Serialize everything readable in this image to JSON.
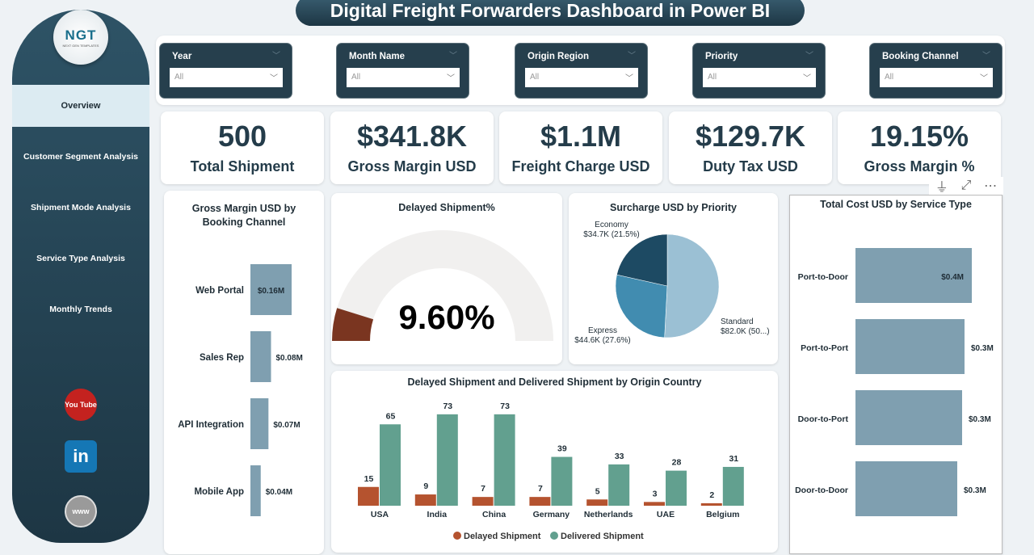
{
  "header": {
    "title": "Digital Freight Forwarders Dashboard in Power BI"
  },
  "sidebar": {
    "logo": {
      "text": "NGT",
      "tagline": "NEXT GEN TEMPLATES"
    },
    "items": [
      {
        "label": "Overview",
        "active": true
      },
      {
        "label": "Customer Segment Analysis"
      },
      {
        "label": "Shipment Mode Analysis"
      },
      {
        "label": "Service Type Analysis"
      },
      {
        "label": "Monthly Trends"
      }
    ],
    "social": [
      {
        "icon": "youtube-icon",
        "label": "You Tube"
      },
      {
        "icon": "linkedin-icon",
        "label": "in"
      },
      {
        "icon": "globe-icon",
        "label": "www"
      }
    ]
  },
  "filters": [
    {
      "label": "Year",
      "value": "All"
    },
    {
      "label": "Month Name",
      "value": "All"
    },
    {
      "label": "Origin Region",
      "value": "All"
    },
    {
      "label": "Priority",
      "value": "All"
    },
    {
      "label": "Booking Channel",
      "value": "All"
    }
  ],
  "kpis": [
    {
      "value": "500",
      "label": "Total Shipment"
    },
    {
      "value": "$341.8K",
      "label": "Gross Margin USD"
    },
    {
      "value": "$1.1M",
      "label": "Freight Charge USD"
    },
    {
      "value": "$129.7K",
      "label": "Duty Tax USD"
    },
    {
      "value": "19.15%",
      "label": "Gross Margin %"
    }
  ],
  "colors": {
    "primary": "#263f4d",
    "bar": "#7f9fb0",
    "delayed": "#b5532f",
    "delivered": "#62a08f",
    "gauge_fill": "#7a3520",
    "gauge_track": "#f1f0ef"
  },
  "chart_data": [
    {
      "type": "bar",
      "orientation": "horizontal",
      "title": "Gross Margin USD by Booking Channel",
      "categories": [
        "Web Portal",
        "Sales Rep",
        "API Integration",
        "Mobile App"
      ],
      "values": [
        0.16,
        0.08,
        0.07,
        0.04
      ],
      "labels": [
        "$0.16M",
        "$0.08M",
        "$0.07M",
        "$0.04M"
      ],
      "unit": "M USD"
    },
    {
      "type": "gauge",
      "title": "Delayed Shipment%",
      "value": 9.6,
      "label": "9.60%",
      "range": [
        0,
        100
      ]
    },
    {
      "type": "pie",
      "title": "Surcharge USD by Priority",
      "slices": [
        {
          "name": "Standard",
          "value": 82.0,
          "label": "$82.0K (50...)",
          "color": "#9bc0d4"
        },
        {
          "name": "Express",
          "value": 44.6,
          "label": "$44.6K (27.6%)",
          "color": "#418cb0"
        },
        {
          "name": "Economy",
          "value": 34.7,
          "label": "$34.7K (21.5%)",
          "color": "#1d4a63"
        }
      ]
    },
    {
      "type": "bar",
      "title": "Delayed Shipment and Delivered Shipment by Origin Country",
      "categories": [
        "USA",
        "India",
        "China",
        "Germany",
        "Netherlands",
        "UAE",
        "Belgium"
      ],
      "series": [
        {
          "name": "Delayed Shipment",
          "values": [
            15,
            9,
            7,
            7,
            5,
            3,
            2
          ]
        },
        {
          "name": "Delivered Shipment",
          "values": [
            65,
            73,
            73,
            39,
            33,
            28,
            31
          ]
        }
      ],
      "legend": "bottom"
    },
    {
      "type": "bar",
      "orientation": "horizontal",
      "title": "Total Cost USD by Service Type",
      "categories": [
        "Port-to-Door",
        "Port-to-Port",
        "Door-to-Port",
        "Door-to-Door"
      ],
      "values": [
        0.4,
        0.3,
        0.3,
        0.3
      ],
      "labels": [
        "$0.4M",
        "$0.3M",
        "$0.3M",
        "$0.3M"
      ],
      "unit": "M USD"
    }
  ]
}
